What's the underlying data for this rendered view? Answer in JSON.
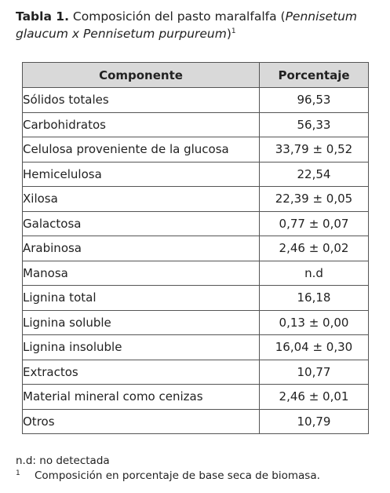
{
  "caption": {
    "label": "Tabla 1.",
    "text": " Composición del pasto maralfalfa (",
    "species": "Pennisetum glaucum x Pennisetum  purpureum",
    "close": ")",
    "footnote_ref": "1"
  },
  "table": {
    "headers": [
      "Componente",
      "Porcentaje"
    ],
    "rows": [
      {
        "componente": "Sólidos totales",
        "porcentaje": "96,53",
        "indent": 0
      },
      {
        "componente": "Carbohidratos",
        "porcentaje": "56,33",
        "indent": 0
      },
      {
        "componente": "Celulosa proveniente de la glucosa",
        "porcentaje": "33,79 ± 0,52",
        "indent": 1
      },
      {
        "componente": "Hemicelulosa",
        "porcentaje": "22,54",
        "indent": 2
      },
      {
        "componente": "Xilosa",
        "porcentaje": "22,39 ± 0,05",
        "indent": 0
      },
      {
        "componente": "Galactosa",
        "porcentaje": "0,77 ± 0,07",
        "indent": 0
      },
      {
        "componente": "Arabinosa",
        "porcentaje": "2,46 ± 0,02",
        "indent": 0
      },
      {
        "componente": "Manosa",
        "porcentaje": "n.d",
        "indent": 0
      },
      {
        "componente": "Lignina total",
        "porcentaje": "16,18",
        "indent": 0
      },
      {
        "componente": "Lignina soluble",
        "porcentaje": "0,13 ± 0,00",
        "indent": 2
      },
      {
        "componente": "Lignina insoluble",
        "porcentaje": "16,04 ± 0,30",
        "indent": 2
      },
      {
        "componente": "Extractos",
        "porcentaje": "10,77",
        "indent": 0
      },
      {
        "componente": "Material mineral como cenizas",
        "porcentaje": "2,46 ± 0,01",
        "indent": 0
      },
      {
        "componente": "Otros",
        "porcentaje": "10,79",
        "indent": 0
      }
    ]
  },
  "notes": {
    "nd": "n.d: no detectada",
    "footnote_mark": "1",
    "footnote_text": "Composición en porcentaje de base seca de biomasa."
  }
}
